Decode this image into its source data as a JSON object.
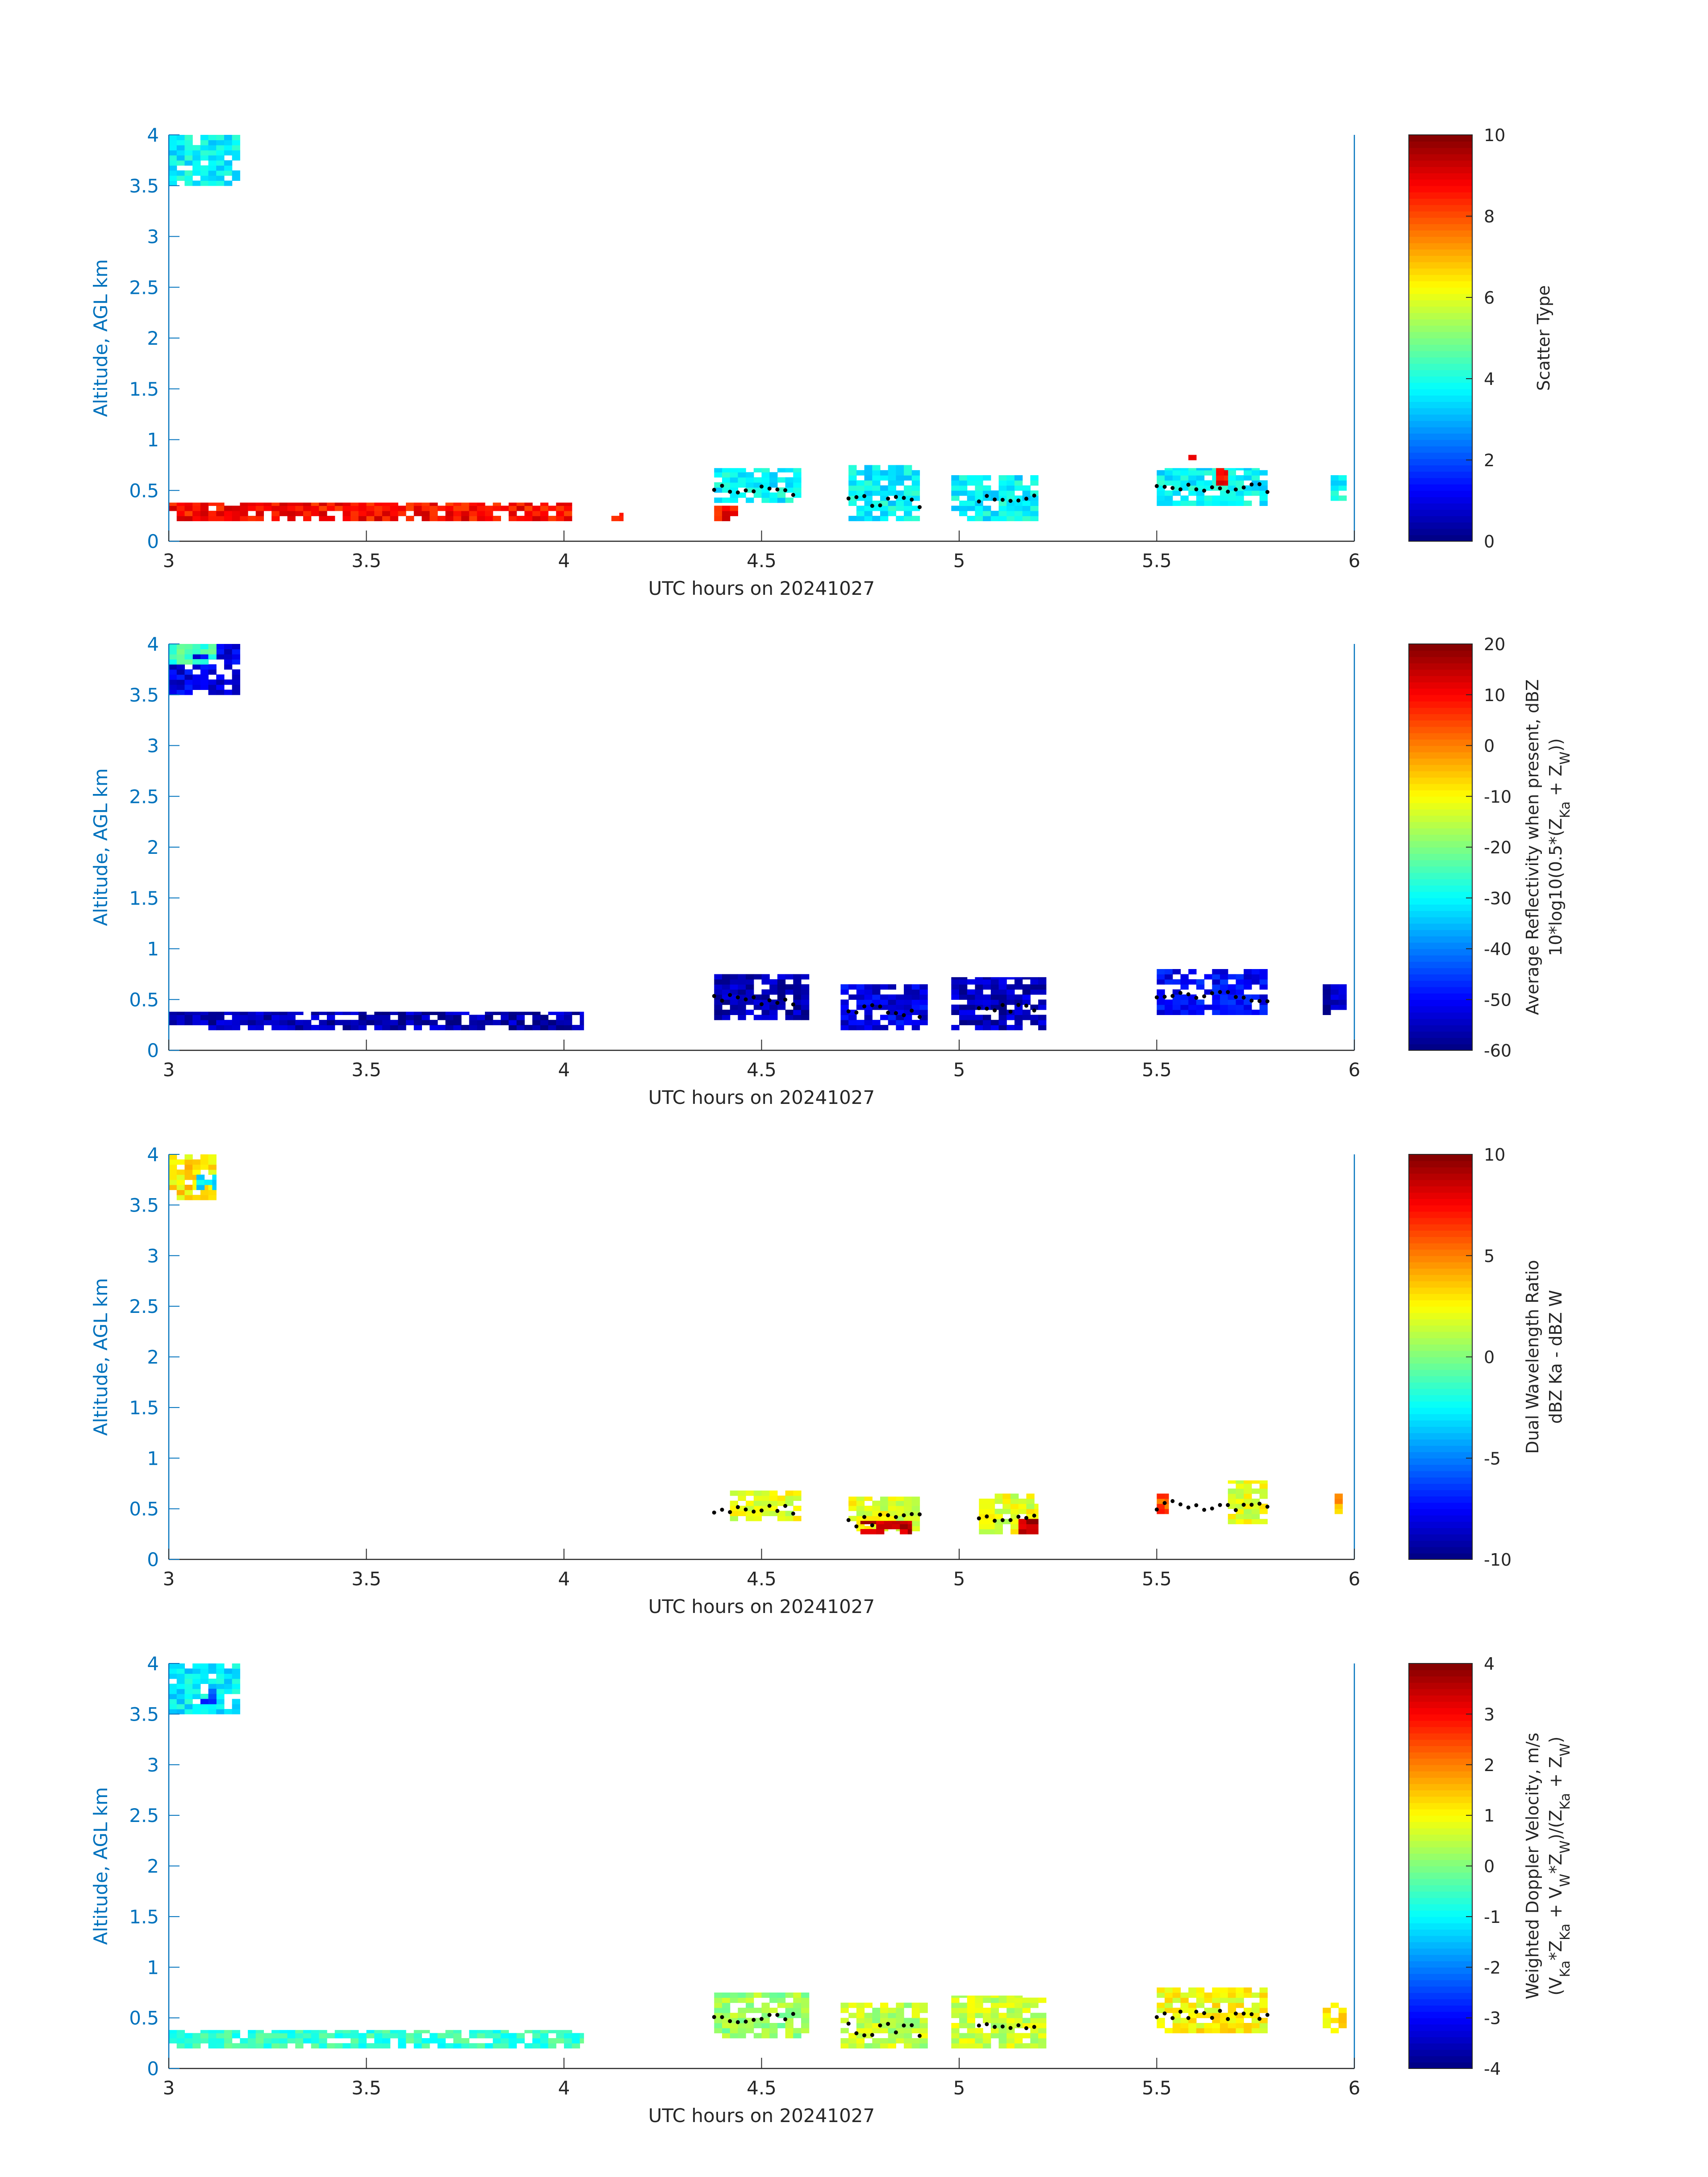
{
  "chart_data": [
    {
      "type": "heatmap",
      "xlabel": "UTC hours on 20241027",
      "ylabel": "Altitude, AGL km",
      "xlim": [
        3,
        6
      ],
      "ylim": [
        0,
        4
      ],
      "xticks": [
        "3",
        "3.5",
        "4",
        "4.5",
        "5",
        "5.5",
        "6"
      ],
      "yticks": [
        "0",
        "0.5",
        "1",
        "1.5",
        "2",
        "2.5",
        "3",
        "3.5",
        "4"
      ],
      "colorbar": {
        "label_lines": [
          "Scatter Type"
        ],
        "range": [
          0,
          10
        ],
        "ticks": [
          "0",
          "2",
          "4",
          "6",
          "8",
          "10"
        ]
      },
      "grid": false,
      "colormap": "jet",
      "blocks": [
        {
          "x": [
            3.0,
            3.18
          ],
          "y": [
            3.5,
            4.0
          ],
          "value": 3.7
        },
        {
          "x": [
            3.0,
            4.02
          ],
          "y": [
            0.2,
            0.38
          ],
          "value": 8.7
        },
        {
          "x": [
            4.12,
            4.15
          ],
          "y": [
            0.2,
            0.28
          ],
          "value": 8.7
        },
        {
          "x": [
            4.38,
            4.44
          ],
          "y": [
            0.2,
            0.35
          ],
          "value": 8.7
        },
        {
          "x": [
            4.38,
            4.6
          ],
          "y": [
            0.38,
            0.72
          ],
          "value": 3.7
        },
        {
          "x": [
            4.72,
            4.9
          ],
          "y": [
            0.2,
            0.75
          ],
          "value": 3.7
        },
        {
          "x": [
            4.98,
            5.2
          ],
          "y": [
            0.2,
            0.65
          ],
          "value": 3.7
        },
        {
          "x": [
            5.5,
            5.78
          ],
          "y": [
            0.35,
            0.72
          ],
          "value": 3.7
        },
        {
          "x": [
            5.58,
            5.6
          ],
          "y": [
            0.8,
            0.9
          ],
          "value": 8.7
        },
        {
          "x": [
            5.65,
            5.68
          ],
          "y": [
            0.55,
            0.72
          ],
          "value": 8.7
        },
        {
          "x": [
            5.94,
            5.98
          ],
          "y": [
            0.4,
            0.65
          ],
          "value": 3.7
        }
      ],
      "dots": [
        {
          "x": [
            4.38,
            4.58
          ],
          "y": [
            0.45,
            0.55
          ]
        },
        {
          "x": [
            4.72,
            4.9
          ],
          "y": [
            0.32,
            0.45
          ]
        },
        {
          "x": [
            5.05,
            5.2
          ],
          "y": [
            0.38,
            0.45
          ]
        },
        {
          "x": [
            5.5,
            5.78
          ],
          "y": [
            0.48,
            0.58
          ]
        }
      ]
    },
    {
      "type": "heatmap",
      "xlabel": "UTC hours on 20241027",
      "ylabel": "Altitude, AGL km",
      "xlim": [
        3,
        6
      ],
      "ylim": [
        0,
        4
      ],
      "xticks": [
        "3",
        "3.5",
        "4",
        "4.5",
        "5",
        "5.5",
        "6"
      ],
      "yticks": [
        "0",
        "0.5",
        "1",
        "1.5",
        "2",
        "2.5",
        "3",
        "3.5",
        "4"
      ],
      "colorbar": {
        "label_lines": [
          "Average Reflectivity when present, dBZ",
          "10*log10(0.5*(Z_Ka + Z_W))"
        ],
        "range": [
          -60,
          20
        ],
        "ticks": [
          "-60",
          "-50",
          "-40",
          "-30",
          "-20",
          "-10",
          "0",
          "10",
          "20"
        ]
      },
      "grid": false,
      "colormap": "jet",
      "blocks": [
        {
          "x": [
            3.0,
            3.18
          ],
          "y": [
            3.5,
            4.0
          ],
          "value": -52
        },
        {
          "x": [
            3.0,
            3.12
          ],
          "y": [
            3.8,
            4.0
          ],
          "value": -25
        },
        {
          "x": [
            3.0,
            4.05
          ],
          "y": [
            0.2,
            0.38
          ],
          "value": -56
        },
        {
          "x": [
            4.38,
            4.62
          ],
          "y": [
            0.3,
            0.75
          ],
          "value": -56
        },
        {
          "x": [
            4.7,
            4.92
          ],
          "y": [
            0.2,
            0.65
          ],
          "value": -52
        },
        {
          "x": [
            4.98,
            5.22
          ],
          "y": [
            0.2,
            0.72
          ],
          "value": -55
        },
        {
          "x": [
            5.5,
            5.78
          ],
          "y": [
            0.35,
            0.8
          ],
          "value": -50
        },
        {
          "x": [
            5.92,
            5.98
          ],
          "y": [
            0.35,
            0.65
          ],
          "value": -56
        }
      ],
      "dots": [
        {
          "x": [
            4.38,
            4.58
          ],
          "y": [
            0.45,
            0.55
          ]
        },
        {
          "x": [
            4.72,
            4.9
          ],
          "y": [
            0.32,
            0.45
          ]
        },
        {
          "x": [
            5.05,
            5.2
          ],
          "y": [
            0.38,
            0.45
          ]
        },
        {
          "x": [
            5.5,
            5.78
          ],
          "y": [
            0.48,
            0.58
          ]
        }
      ]
    },
    {
      "type": "heatmap",
      "xlabel": "UTC hours on 20241027",
      "ylabel": "Altitude, AGL km",
      "xlim": [
        3,
        6
      ],
      "ylim": [
        0,
        4
      ],
      "xticks": [
        "3",
        "3.5",
        "4",
        "4.5",
        "5",
        "5.5",
        "6"
      ],
      "yticks": [
        "0",
        "0.5",
        "1",
        "1.5",
        "2",
        "2.5",
        "3",
        "3.5",
        "4"
      ],
      "colorbar": {
        "label_lines": [
          "Dual Wavelength Ratio",
          "dBZ Ka - dBZ W"
        ],
        "range": [
          -10,
          10
        ],
        "ticks": [
          "-10",
          "-5",
          "0",
          "5",
          "10"
        ]
      },
      "grid": false,
      "colormap": "jet",
      "blocks": [
        {
          "x": [
            3.0,
            3.12
          ],
          "y": [
            3.55,
            4.0
          ],
          "value": 3
        },
        {
          "x": [
            3.07,
            3.12
          ],
          "y": [
            3.65,
            3.8
          ],
          "value": -3
        },
        {
          "x": [
            4.42,
            4.6
          ],
          "y": [
            0.38,
            0.68
          ],
          "value": 2
        },
        {
          "x": [
            4.72,
            4.9
          ],
          "y": [
            0.28,
            0.62
          ],
          "value": 2
        },
        {
          "x": [
            4.75,
            4.88
          ],
          "y": [
            0.25,
            0.38
          ],
          "value": 9
        },
        {
          "x": [
            5.05,
            5.2
          ],
          "y": [
            0.25,
            0.65
          ],
          "value": 2
        },
        {
          "x": [
            5.15,
            5.2
          ],
          "y": [
            0.25,
            0.4
          ],
          "value": 9
        },
        {
          "x": [
            5.5,
            5.53
          ],
          "y": [
            0.45,
            0.65
          ],
          "value": 6
        },
        {
          "x": [
            5.68,
            5.78
          ],
          "y": [
            0.35,
            0.78
          ],
          "value": 2
        },
        {
          "x": [
            5.95,
            5.97
          ],
          "y": [
            0.4,
            0.65
          ],
          "value": 4
        }
      ],
      "dots": [
        {
          "x": [
            4.38,
            4.58
          ],
          "y": [
            0.45,
            0.55
          ]
        },
        {
          "x": [
            4.72,
            4.9
          ],
          "y": [
            0.32,
            0.45
          ]
        },
        {
          "x": [
            5.05,
            5.2
          ],
          "y": [
            0.38,
            0.45
          ]
        },
        {
          "x": [
            5.5,
            5.78
          ],
          "y": [
            0.48,
            0.58
          ]
        }
      ]
    },
    {
      "type": "heatmap",
      "xlabel": "UTC hours on 20241027",
      "ylabel": "Altitude, AGL km",
      "xlim": [
        3,
        6
      ],
      "ylim": [
        0,
        4
      ],
      "xticks": [
        "3",
        "3.5",
        "4",
        "4.5",
        "5",
        "5.5",
        "6"
      ],
      "yticks": [
        "0",
        "0.5",
        "1",
        "1.5",
        "2",
        "2.5",
        "3",
        "3.5",
        "4"
      ],
      "colorbar": {
        "label_lines": [
          "Weighted Doppler Velocity, m/s",
          "(V_Ka*Z_Ka + V_W*Z_W)/(Z_Ka + Z_W)"
        ],
        "range": [
          -4,
          4
        ],
        "ticks": [
          "-4",
          "-3",
          "-2",
          "-1",
          "0",
          "1",
          "2",
          "3",
          "4"
        ]
      },
      "grid": false,
      "colormap": "jet",
      "blocks": [
        {
          "x": [
            3.0,
            3.18
          ],
          "y": [
            3.5,
            4.0
          ],
          "value": -1.1
        },
        {
          "x": [
            3.08,
            3.12
          ],
          "y": [
            3.6,
            3.75
          ],
          "value": -2.5
        },
        {
          "x": [
            3.0,
            4.05
          ],
          "y": [
            0.2,
            0.38
          ],
          "value": -0.6
        },
        {
          "x": [
            4.38,
            4.62
          ],
          "y": [
            0.3,
            0.75
          ],
          "value": 0.2
        },
        {
          "x": [
            4.7,
            4.92
          ],
          "y": [
            0.2,
            0.65
          ],
          "value": 0.5
        },
        {
          "x": [
            4.98,
            5.22
          ],
          "y": [
            0.2,
            0.72
          ],
          "value": 0.6
        },
        {
          "x": [
            5.5,
            5.78
          ],
          "y": [
            0.35,
            0.8
          ],
          "value": 1.0
        },
        {
          "x": [
            5.92,
            5.98
          ],
          "y": [
            0.35,
            0.65
          ],
          "value": 1.1
        }
      ],
      "dots": [
        {
          "x": [
            4.38,
            4.58
          ],
          "y": [
            0.45,
            0.55
          ]
        },
        {
          "x": [
            4.72,
            4.9
          ],
          "y": [
            0.32,
            0.45
          ]
        },
        {
          "x": [
            5.05,
            5.2
          ],
          "y": [
            0.38,
            0.45
          ]
        },
        {
          "x": [
            5.5,
            5.78
          ],
          "y": [
            0.48,
            0.58
          ]
        }
      ]
    }
  ]
}
